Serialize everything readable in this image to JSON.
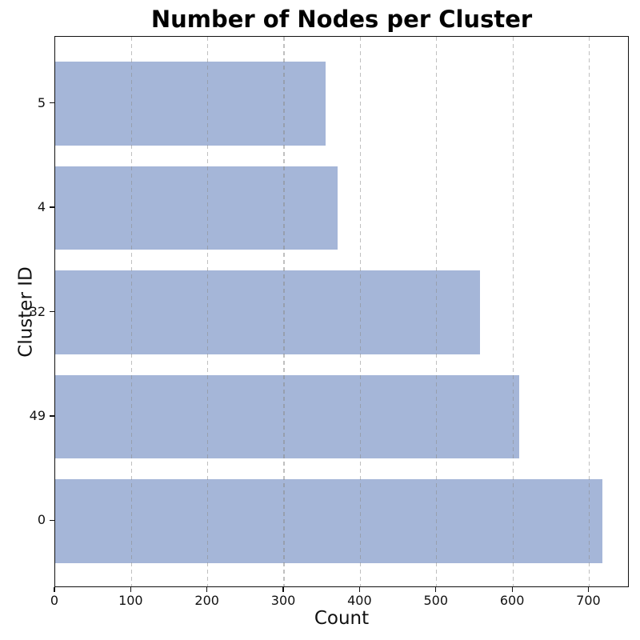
{
  "chart_data": {
    "type": "bar",
    "orientation": "horizontal",
    "title": "Number of Nodes per Cluster",
    "xlabel": "Count",
    "ylabel": "Cluster ID",
    "categories": [
      "5",
      "4",
      "32",
      "49",
      "0"
    ],
    "values": [
      355,
      370,
      557,
      608,
      717
    ],
    "xticks": [
      0,
      100,
      200,
      300,
      400,
      500,
      600,
      700
    ],
    "xlim": [
      0,
      753
    ],
    "grid": "vertical-dashed",
    "legend": "none",
    "colors": {
      "bar": "#a5b6d8",
      "grid": "#8c8c8c",
      "spine": "#111111",
      "text": "#111111",
      "title": "#000000",
      "background": "#ffffff"
    }
  }
}
